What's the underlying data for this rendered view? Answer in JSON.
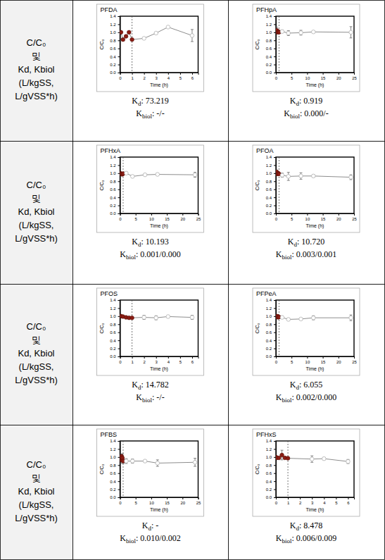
{
  "table": {
    "row_header": [
      "C/C₀",
      "및",
      "Kd, Kbiol",
      "(L/kgSS,",
      "L/gVSS*h)"
    ]
  },
  "chart_data": [
    {
      "type": "line",
      "title": "PFDA",
      "xlabel": "Time (h)",
      "ylabel": "C/C₀",
      "x": [
        0,
        0.083,
        0.25,
        0.5,
        0.75,
        1,
        2,
        3,
        4,
        6
      ],
      "xlim": [
        0,
        6.5
      ],
      "xticks": [
        0,
        1,
        2,
        3,
        4,
        5,
        6
      ],
      "ylim": [
        0,
        1.4
      ],
      "yticks": [
        {
          "value": 0,
          "label": "0.0"
        },
        0.2,
        0.4,
        0.6,
        0.8,
        {
          "value": 1,
          "label": "1.0"
        },
        1.2,
        1.4
      ],
      "vline_x": 1,
      "series": [
        {
          "values": [
            1.0,
            1.0,
            0.82,
            0.9,
            1.0,
            0.82,
            0.85,
            0.98,
            1.13,
            0.92
          ],
          "errors": [
            0.01,
            0.01,
            0.03,
            0.03,
            0.02,
            0.02,
            0.01,
            0.01,
            0.01,
            0.15
          ],
          "color": "#808080",
          "marker": "circle",
          "line_style": "solid",
          "colors": [
            "#8c1c13",
            "#8c1c13",
            "#8c1c13",
            "#8c1c13",
            "#8c1c13",
            "#8c1c13",
            "#ffffff",
            "#ffffff",
            "#ffffff",
            "#ffffff"
          ]
        }
      ],
      "annotations": [
        "Kd: 73.219",
        "Kbiol: -/-"
      ]
    },
    {
      "type": "line",
      "title": "PFHpA",
      "xlabel": "Time (h)",
      "ylabel": "C/C₀",
      "x": [
        0,
        0.25,
        0.5,
        0.75,
        1,
        2,
        4,
        8,
        12,
        24
      ],
      "xlim": [
        0,
        25
      ],
      "xticks": [
        0,
        5,
        10,
        15,
        20,
        25
      ],
      "ylim": [
        0,
        1.4
      ],
      "yticks": [
        {
          "value": 0,
          "label": "0.0"
        },
        0.2,
        0.4,
        0.6,
        0.8,
        {
          "value": 1,
          "label": "1.0"
        },
        1.2,
        1.4
      ],
      "vline_x": 1,
      "series": [
        {
          "values": [
            1.02,
            1.05,
            1.0,
            1.02,
            1.0,
            1.02,
            0.98,
            0.99,
            1.01,
            1.0
          ],
          "errors": [
            0.02,
            0.08,
            0.02,
            0.03,
            0.02,
            0.03,
            0.06,
            0.06,
            0.02,
            0.14
          ],
          "color": "#808080",
          "marker": "circle",
          "line_style": "solid",
          "colors": [
            "#8c1c13",
            "#8c1c13",
            "#8c1c13",
            "#8c1c13",
            "#8c1c13",
            "#ffffff",
            "#ffffff",
            "#ffffff",
            "#ffffff",
            "#ffffff"
          ]
        }
      ],
      "annotations": [
        "Kd: 0.919",
        "Kbiol: 0.000/-"
      ]
    },
    {
      "type": "line",
      "title": "PFHxA",
      "xlabel": "Time (h)",
      "ylabel": "C/C₀",
      "x": [
        0,
        0.25,
        0.5,
        0.75,
        1,
        2,
        4,
        8,
        12,
        24
      ],
      "xlim": [
        0,
        25
      ],
      "xticks": [
        0,
        5,
        10,
        15,
        20,
        25
      ],
      "ylim": [
        0,
        1.4
      ],
      "yticks": [
        {
          "value": 0,
          "label": "0.0"
        },
        0.2,
        0.4,
        0.6,
        0.8,
        {
          "value": 1,
          "label": "1.0"
        },
        1.2,
        1.4
      ],
      "vline_x": 1,
      "series": [
        {
          "values": [
            1.0,
            0.99,
            0.98,
            0.97,
            0.99,
            1.0,
            0.92,
            0.96,
            0.97,
            0.96
          ],
          "errors": [
            0.02,
            0.02,
            0.02,
            0.02,
            0.02,
            0.02,
            0.02,
            0.02,
            0.02,
            0.06
          ],
          "color": "#808080",
          "marker": "circle",
          "line_style": "solid",
          "colors": [
            "#8c1c13",
            "#8c1c13",
            "#8c1c13",
            "#8c1c13",
            "#8c1c13",
            "#ffffff",
            "#ffffff",
            "#ffffff",
            "#ffffff",
            "#ffffff"
          ]
        }
      ],
      "annotations": [
        "Kd: 10.193",
        "Kbiol: 0.001/0.000"
      ]
    },
    {
      "type": "line",
      "title": "PFOA",
      "xlabel": "Time (h)",
      "ylabel": "C/C₀",
      "x": [
        0,
        0.25,
        0.5,
        0.75,
        1,
        2,
        4,
        8,
        12,
        24
      ],
      "xlim": [
        0,
        25
      ],
      "xticks": [
        0,
        5,
        10,
        15,
        20,
        25
      ],
      "ylim": [
        0,
        1.4
      ],
      "yticks": [
        {
          "value": 0,
          "label": "0.0"
        },
        0.2,
        0.4,
        0.6,
        0.8,
        {
          "value": 1,
          "label": "1.0"
        },
        1.2,
        1.4
      ],
      "vline_x": 1,
      "series": [
        {
          "values": [
            1.02,
            1.03,
            0.98,
            1.0,
            0.98,
            0.95,
            0.92,
            0.93,
            0.93,
            0.9
          ],
          "errors": [
            0.02,
            0.05,
            0.03,
            0.02,
            0.02,
            0.05,
            0.1,
            0.08,
            0.03,
            0.06
          ],
          "color": "#808080",
          "marker": "circle",
          "line_style": "solid",
          "colors": [
            "#8c1c13",
            "#8c1c13",
            "#8c1c13",
            "#8c1c13",
            "#8c1c13",
            "#ffffff",
            "#ffffff",
            "#ffffff",
            "#ffffff",
            "#ffffff"
          ]
        }
      ],
      "annotations": [
        "Kd: 10.720",
        "Kbiol: 0.003/0.001"
      ]
    },
    {
      "type": "line",
      "title": "PFOS",
      "xlabel": "Time (h)",
      "ylabel": "C/C₀",
      "x": [
        0,
        0.083,
        0.25,
        0.5,
        0.75,
        1,
        2,
        3,
        4,
        6
      ],
      "xlim": [
        0,
        6.5
      ],
      "xticks": [
        0,
        1,
        2,
        3,
        4,
        5,
        6
      ],
      "ylim": [
        0,
        1.4
      ],
      "yticks": [
        {
          "value": 0,
          "label": "0.0"
        },
        0.2,
        0.4,
        0.6,
        0.8,
        {
          "value": 1,
          "label": "1.0"
        },
        1.2,
        1.4
      ],
      "vline_x": 1,
      "series": [
        {
          "values": [
            1.0,
            1.0,
            0.99,
            0.97,
            0.96,
            0.96,
            0.97,
            0.96,
            0.99,
            0.97
          ],
          "errors": [
            0.01,
            0.01,
            0.02,
            0.02,
            0.02,
            0.02,
            0.05,
            0.05,
            0.01,
            0.05
          ],
          "color": "#808080",
          "marker": "circle",
          "line_style": "solid",
          "colors": [
            "#8c1c13",
            "#8c1c13",
            "#8c1c13",
            "#8c1c13",
            "#8c1c13",
            "#8c1c13",
            "#ffffff",
            "#ffffff",
            "#ffffff",
            "#ffffff"
          ]
        }
      ],
      "annotations": [
        "Kd: 14.782",
        "Kbiol: -/-"
      ]
    },
    {
      "type": "line",
      "title": "PFPeA",
      "xlabel": "Time (h)",
      "ylabel": "C/C₀",
      "x": [
        0,
        0.25,
        0.5,
        0.75,
        1,
        2,
        4,
        8,
        12,
        24
      ],
      "xlim": [
        0,
        25
      ],
      "xticks": [
        0,
        5,
        10,
        15,
        20,
        25
      ],
      "ylim": [
        0,
        1.4
      ],
      "yticks": [
        {
          "value": 0,
          "label": "0.0"
        },
        0.2,
        0.4,
        0.6,
        0.8,
        {
          "value": 1,
          "label": "1.0"
        },
        1.2,
        1.4
      ],
      "vline_x": 1,
      "series": [
        {
          "values": [
            1.0,
            0.98,
            1.0,
            0.97,
            0.98,
            0.97,
            0.92,
            0.93,
            0.96,
            0.96
          ],
          "errors": [
            0.02,
            0.02,
            0.02,
            0.02,
            0.02,
            0.02,
            0.02,
            0.02,
            0.05,
            0.07
          ],
          "color": "#808080",
          "marker": "circle",
          "line_style": "solid",
          "colors": [
            "#8c1c13",
            "#8c1c13",
            "#8c1c13",
            "#8c1c13",
            "#8c1c13",
            "#ffffff",
            "#ffffff",
            "#ffffff",
            "#ffffff",
            "#ffffff"
          ]
        }
      ],
      "annotations": [
        "Kd: 6.055",
        "Kbiol: 0.002/0.000"
      ]
    },
    {
      "type": "line",
      "title": "PFBS",
      "xlabel": "Time (h)",
      "ylabel": "C/C₀",
      "x": [
        0,
        0.25,
        0.5,
        0.75,
        1,
        2,
        4,
        8,
        12,
        24
      ],
      "xlim": [
        0,
        25
      ],
      "xticks": [
        0,
        5,
        10,
        15,
        20,
        25
      ],
      "ylim": [
        0,
        1.4
      ],
      "yticks": [
        {
          "value": 0,
          "label": "0.0"
        },
        0.2,
        0.4,
        0.6,
        0.8,
        {
          "value": 1,
          "label": "1.0"
        },
        1.2,
        1.4
      ],
      "vline_x": 1,
      "series": [
        {
          "values": [
            1.0,
            0.93,
            1.02,
            0.98,
            0.9,
            0.9,
            0.9,
            0.9,
            0.85,
            0.87
          ],
          "errors": [
            0.02,
            0.08,
            0.05,
            0.1,
            0.06,
            0.06,
            0.05,
            0.03,
            0.08,
            0.1
          ],
          "color": "#808080",
          "marker": "circle",
          "line_style": "solid",
          "colors": [
            "#8c1c13",
            "#8c1c13",
            "#8c1c13",
            "#8c1c13",
            "#8c1c13",
            "#ffffff",
            "#ffffff",
            "#ffffff",
            "#ffffff",
            "#ffffff"
          ]
        }
      ],
      "annotations": [
        "Kd: -",
        "Kbiol: 0.010/0.002"
      ]
    },
    {
      "type": "line",
      "title": "PFHxS",
      "xlabel": "Time (h)",
      "ylabel": "C/C₀",
      "x": [
        0,
        0.083,
        0.25,
        0.5,
        0.75,
        1,
        3,
        4,
        6
      ],
      "xlim": [
        0,
        6.5
      ],
      "xticks": [
        0,
        1,
        2,
        3,
        4,
        5,
        6
      ],
      "ylim": [
        0,
        1.4
      ],
      "yticks": [
        {
          "value": 0,
          "label": "0.0"
        },
        0.2,
        0.4,
        0.6,
        0.8,
        {
          "value": 1,
          "label": "1.0"
        },
        1.2,
        1.4
      ],
      "vline_x": 1,
      "series": [
        {
          "values": [
            1.0,
            0.98,
            0.98,
            1.05,
            0.98,
            0.97,
            0.95,
            0.96,
            0.89
          ],
          "errors": [
            0.02,
            0.02,
            0.02,
            0.12,
            0.02,
            0.02,
            0.08,
            0.03,
            0.05
          ],
          "color": "#808080",
          "marker": "circle",
          "line_style": "solid",
          "colors": [
            "#8c1c13",
            "#8c1c13",
            "#8c1c13",
            "#8c1c13",
            "#8c1c13",
            "#8c1c13",
            "#ffffff",
            "#ffffff",
            "#ffffff"
          ]
        }
      ],
      "annotations": [
        "Kd: 8.478",
        "Kbiol: 0.006/0.009"
      ]
    }
  ]
}
